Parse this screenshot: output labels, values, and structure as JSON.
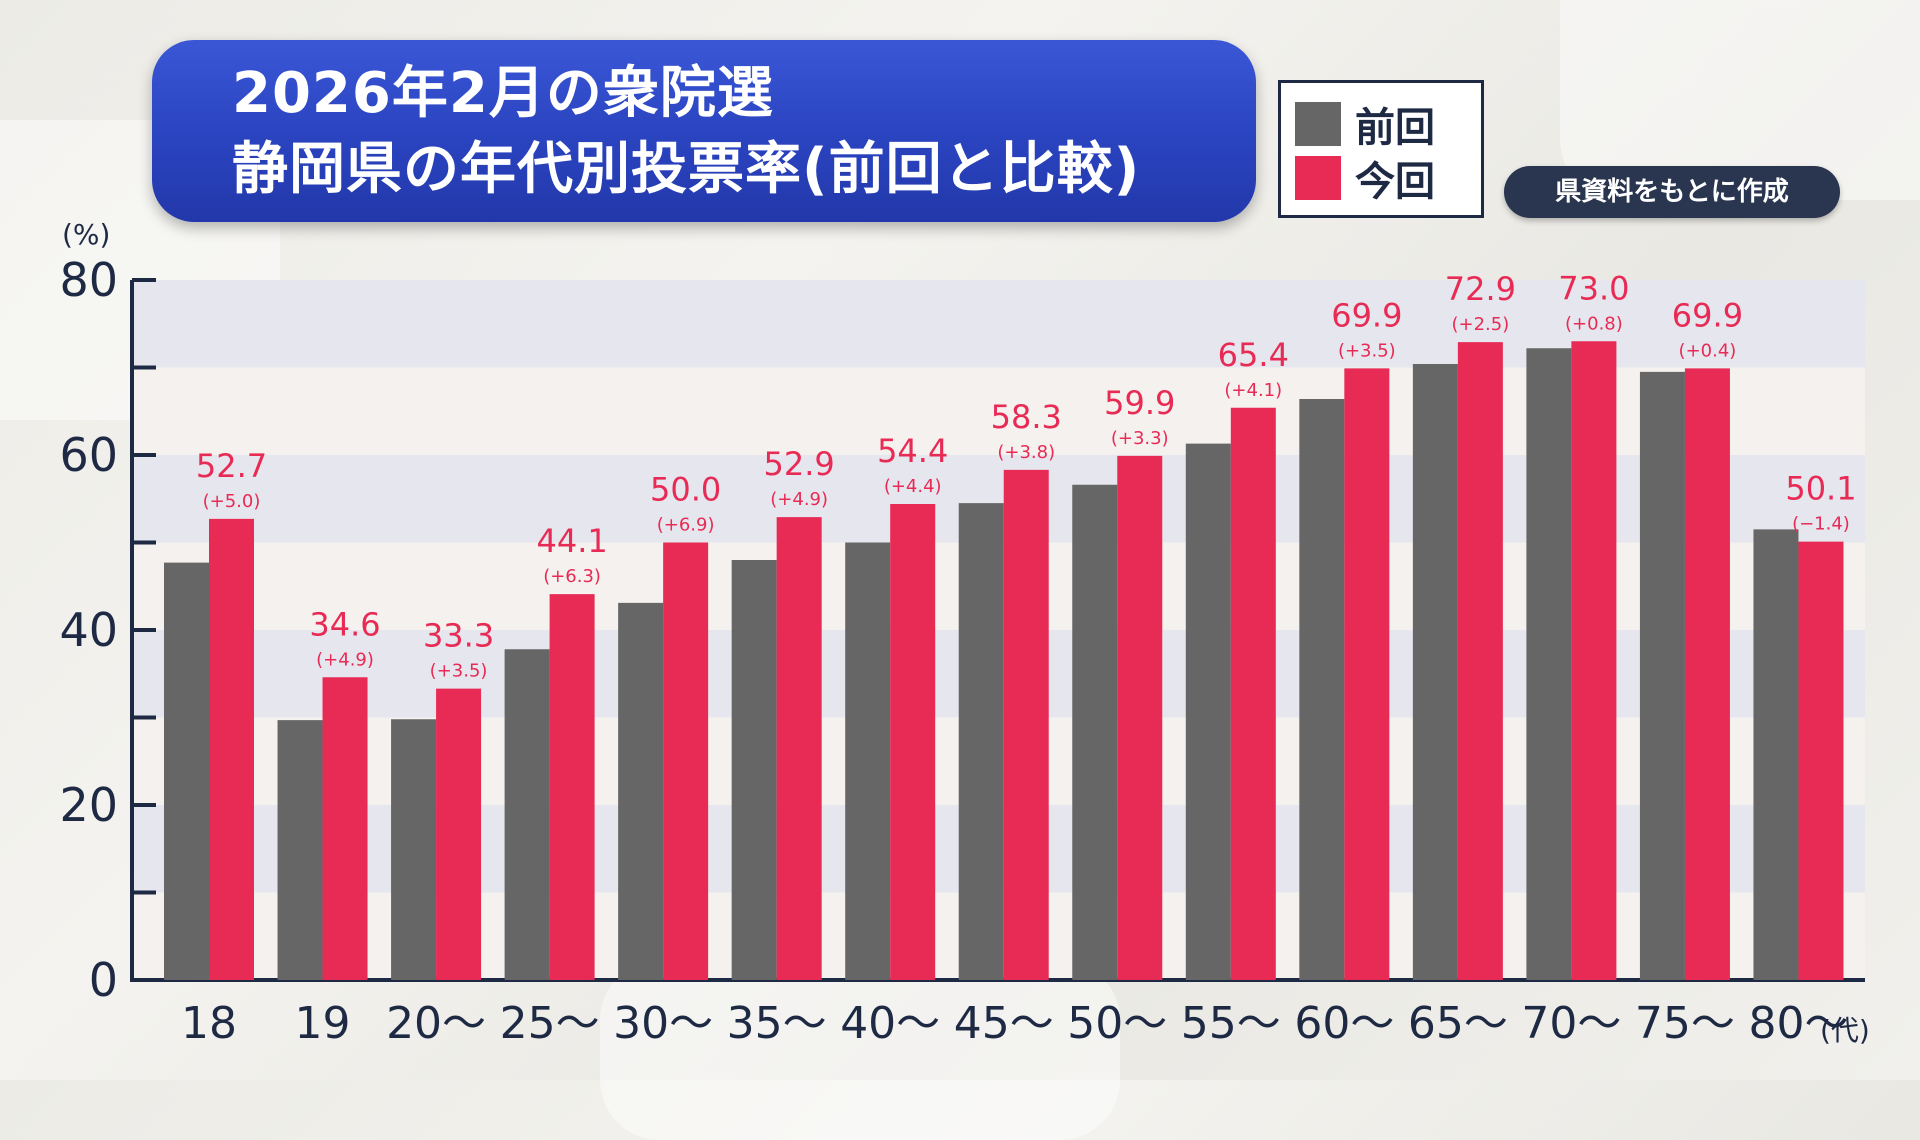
{
  "title": {
    "line1": "2026年2月の衆院選",
    "line2": "静岡県の年代別投票率(前回と比較)"
  },
  "legend": {
    "previous": "前回",
    "current": "今回"
  },
  "source": "県資料をもとに作成",
  "colors": {
    "previous": "#666666",
    "current": "#e82b55",
    "axis": "#1e2a44",
    "band_dark": "#e6e6ee",
    "band_light": "#f4f1ee"
  },
  "chart_data": {
    "type": "bar",
    "y_unit_label": "(%)",
    "x_unit_label": "(代)",
    "ylim": [
      0,
      80
    ],
    "y_ticks": [
      "0",
      "20",
      "40",
      "60",
      "80"
    ],
    "categories": [
      "18",
      "19",
      "20〜",
      "25〜",
      "30〜",
      "35〜",
      "40〜",
      "45〜",
      "50〜",
      "55〜",
      "60〜",
      "65〜",
      "70〜",
      "75〜",
      "80〜"
    ],
    "series": [
      {
        "name": "前回",
        "values": [
          47.7,
          29.7,
          29.8,
          37.8,
          43.1,
          48.0,
          50.0,
          54.5,
          56.6,
          61.3,
          66.4,
          70.4,
          72.2,
          69.5,
          51.5
        ]
      },
      {
        "name": "今回",
        "values": [
          52.7,
          34.6,
          33.3,
          44.1,
          50.0,
          52.9,
          54.4,
          58.3,
          59.9,
          65.4,
          69.9,
          72.9,
          73.0,
          69.9,
          50.1
        ]
      }
    ],
    "value_labels": [
      "52.7",
      "34.6",
      "33.3",
      "44.1",
      "50.0",
      "52.9",
      "54.4",
      "58.3",
      "59.9",
      "65.4",
      "69.9",
      "72.9",
      "73.0",
      "69.9",
      "50.1"
    ],
    "diff_labels": [
      "(+5.0)",
      "(+4.9)",
      "(+3.5)",
      "(+6.3)",
      "(+6.9)",
      "(+4.9)",
      "(+4.4)",
      "(+3.8)",
      "(+3.3)",
      "(+4.1)",
      "(+3.5)",
      "(+2.5)",
      "(+0.8)",
      "(+0.4)",
      "(−1.4)"
    ],
    "grid_bands": true,
    "legend_position": "top-right"
  }
}
